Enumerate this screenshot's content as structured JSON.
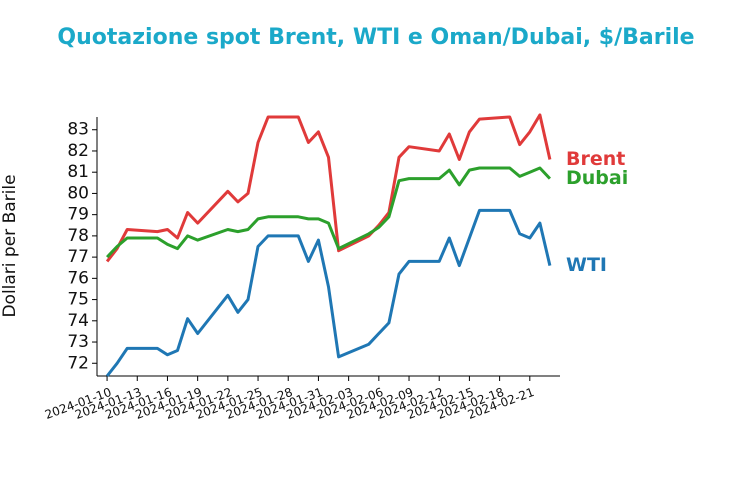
{
  "chart_data": {
    "type": "line",
    "title": "Quotazione spot Brent, WTI e Oman/Dubai, $/Barile",
    "y_label": "Dollari per Barile",
    "x": [
      "2024-01-10",
      "2024-01-11",
      "2024-01-12",
      "2024-01-15",
      "2024-01-16",
      "2024-01-17",
      "2024-01-18",
      "2024-01-19",
      "2024-01-22",
      "2024-01-23",
      "2024-01-24",
      "2024-01-25",
      "2024-01-26",
      "2024-01-29",
      "2024-01-30",
      "2024-01-31",
      "2024-02-01",
      "2024-02-02",
      "2024-02-05",
      "2024-02-06",
      "2024-02-07",
      "2024-02-08",
      "2024-02-09",
      "2024-02-12",
      "2024-02-13",
      "2024-02-14",
      "2024-02-15",
      "2024-02-16",
      "2024-02-19",
      "2024-02-20",
      "2024-02-21",
      "2024-02-22",
      "2024-02-23"
    ],
    "series": [
      {
        "name": "Brent",
        "color": "#e03a3a",
        "values": [
          76.8,
          77.4,
          78.3,
          78.2,
          78.3,
          77.9,
          79.1,
          78.6,
          80.1,
          79.6,
          80.0,
          82.4,
          83.6,
          83.6,
          82.4,
          82.9,
          81.7,
          77.3,
          78.0,
          78.5,
          79.1,
          81.7,
          82.2,
          82.0,
          82.8,
          81.6,
          82.9,
          83.5,
          83.6,
          82.3,
          82.9,
          83.7,
          81.6
        ]
      },
      {
        "name": "Dubai",
        "color": "#2ca02c",
        "values": [
          77.0,
          77.5,
          77.9,
          77.9,
          77.6,
          77.4,
          78.0,
          77.8,
          78.3,
          78.2,
          78.3,
          78.8,
          78.9,
          78.9,
          78.8,
          78.8,
          78.6,
          77.4,
          78.1,
          78.4,
          78.9,
          80.6,
          80.7,
          80.7,
          81.1,
          80.4,
          81.1,
          81.2,
          81.2,
          80.8,
          81.0,
          81.2,
          80.7
        ]
      },
      {
        "name": "WTI",
        "color": "#1f77b4",
        "values": [
          71.4,
          72.0,
          72.7,
          72.7,
          72.4,
          72.6,
          74.1,
          73.4,
          75.2,
          74.4,
          75.0,
          77.5,
          78.0,
          78.0,
          76.8,
          77.8,
          75.6,
          72.3,
          72.9,
          73.4,
          73.9,
          76.2,
          76.8,
          76.8,
          77.9,
          76.6,
          77.9,
          79.2,
          79.2,
          78.1,
          77.9,
          78.6,
          76.6
        ]
      }
    ],
    "xlim": [
      "2024-01-09",
      "2024-02-24"
    ],
    "xticks": [
      "2024-01-10",
      "2024-01-13",
      "2024-01-16",
      "2024-01-19",
      "2024-01-22",
      "2024-01-25",
      "2024-01-28",
      "2024-01-31",
      "2024-02-03",
      "2024-02-06",
      "2024-02-09",
      "2024-02-12",
      "2024-02-15",
      "2024-02-18",
      "2024-02-21"
    ],
    "ylim": [
      71.4,
      83.6
    ],
    "yticks": [
      72,
      73,
      74,
      75,
      76,
      77,
      78,
      79,
      80,
      81,
      82,
      83
    ]
  }
}
